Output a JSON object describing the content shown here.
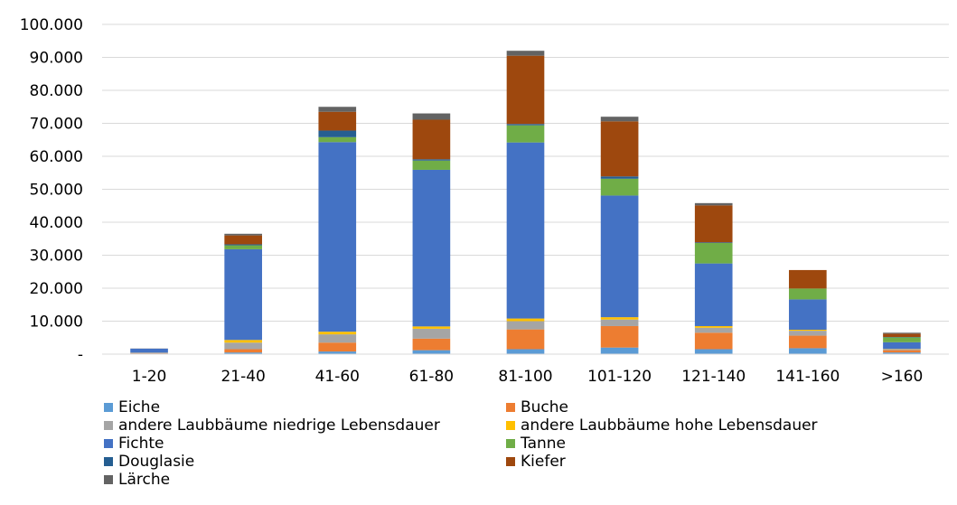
{
  "chart_data": {
    "type": "bar",
    "stacked": true,
    "categories": [
      "1-20",
      "21-40",
      "41-60",
      "61-80",
      "81-100",
      "101-120",
      "121-140",
      "141-160",
      ">160"
    ],
    "y_ticks": [
      "-",
      "10.000",
      "20.000",
      "30.000",
      "40.000",
      "50.000",
      "60.000",
      "70.000",
      "80.000",
      "90.000",
      "100.000"
    ],
    "ylim": [
      0,
      100000
    ],
    "grid": true,
    "legend_position": "bottom",
    "series": [
      {
        "name": "Eiche",
        "color": "#5b9bd5",
        "values": [
          200,
          500,
          800,
          1200,
          1500,
          2000,
          1500,
          1800,
          500
        ]
      },
      {
        "name": "Buche",
        "color": "#ed7d31",
        "values": [
          100,
          1000,
          2700,
          3500,
          6000,
          6500,
          5000,
          3800,
          700
        ]
      },
      {
        "name": "andere Laubbäume niedrige Lebensdauer",
        "color": "#a5a5a5",
        "values": [
          100,
          2000,
          2500,
          3000,
          2500,
          2000,
          1500,
          1500,
          300
        ]
      },
      {
        "name": "andere Laubbäume hohe Lebensdauer",
        "color": "#ffc000",
        "values": [
          50,
          800,
          800,
          700,
          800,
          700,
          500,
          300,
          100
        ]
      },
      {
        "name": "Fichte",
        "color": "#4472c4",
        "values": [
          1200,
          27500,
          57500,
          47500,
          53400,
          36900,
          19000,
          9200,
          2000
        ]
      },
      {
        "name": "Tanne",
        "color": "#70ad47",
        "values": [
          0,
          1200,
          1500,
          2800,
          5200,
          5100,
          6200,
          3300,
          1500
        ]
      },
      {
        "name": "Douglasie",
        "color": "#255e91",
        "values": [
          0,
          300,
          2000,
          400,
          400,
          700,
          200,
          0,
          100
        ]
      },
      {
        "name": "Kiefer",
        "color": "#9e480e",
        "values": [
          0,
          2700,
          5700,
          12000,
          20700,
          16700,
          11200,
          5600,
          1000
        ]
      },
      {
        "name": "Lärche",
        "color": "#636363",
        "values": [
          50,
          500,
          1500,
          1900,
          1500,
          1400,
          700,
          0,
          300
        ]
      }
    ]
  }
}
